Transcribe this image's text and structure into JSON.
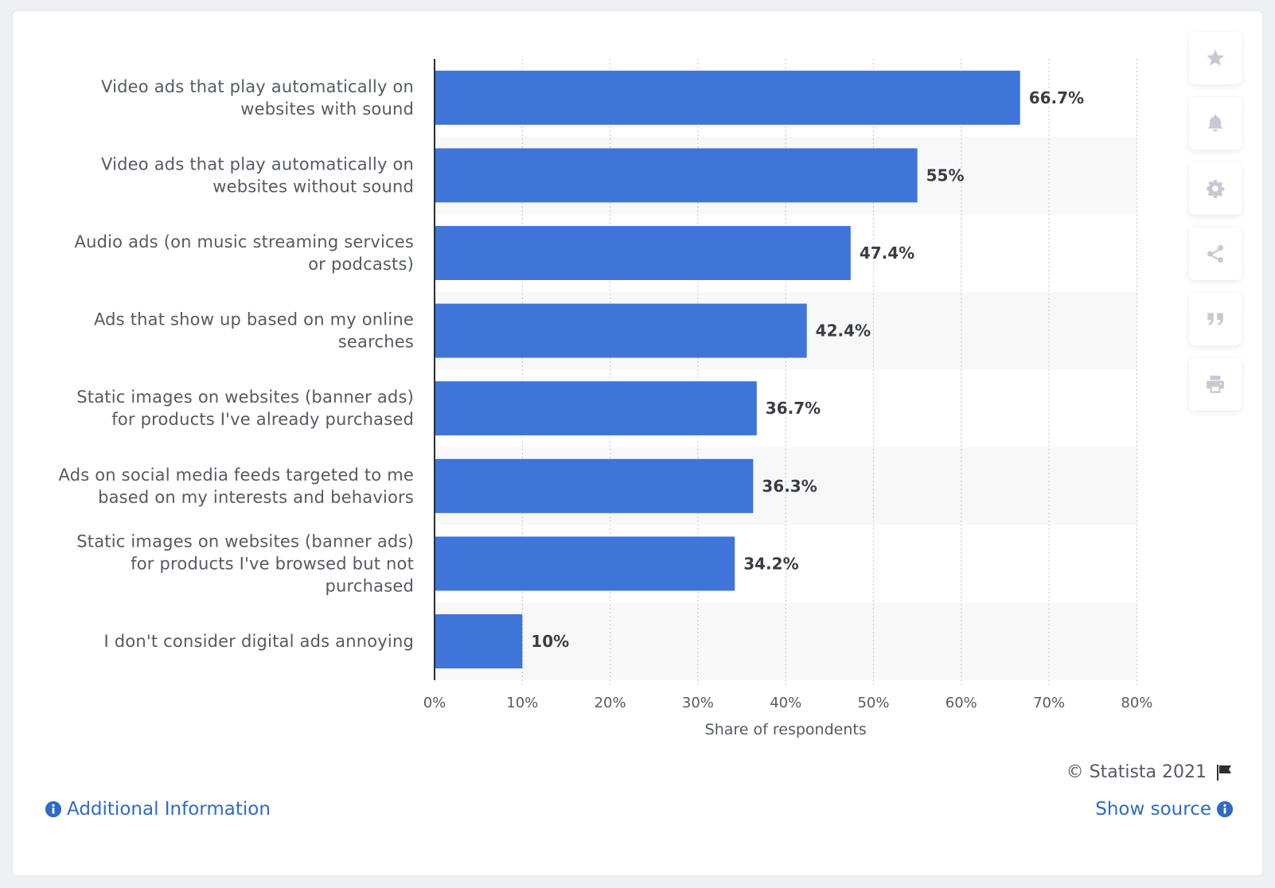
{
  "chart_data": {
    "type": "bar",
    "orientation": "horizontal",
    "categories": [
      [
        "Video ads that play automatically on",
        "websites with sound"
      ],
      [
        "Video ads that play automatically on",
        "websites without sound"
      ],
      [
        "Audio ads (on music streaming services",
        "or podcasts)"
      ],
      [
        "Ads that show up based on my online",
        "searches"
      ],
      [
        "Static images on websites (banner ads)",
        "for products I've already purchased"
      ],
      [
        "Ads on social media feeds targeted to me",
        "based on my interests and behaviors"
      ],
      [
        "Static images on websites (banner ads)",
        "for products I've browsed but not",
        "purchased"
      ],
      [
        "I don't consider digital ads annoying"
      ]
    ],
    "values": [
      66.7,
      55,
      47.4,
      42.4,
      36.7,
      36.3,
      34.2,
      10
    ],
    "value_labels": [
      "66.7%",
      "55%",
      "47.4%",
      "42.4%",
      "36.7%",
      "36.3%",
      "34.2%",
      "10%"
    ],
    "x_ticks": [
      "0%",
      "10%",
      "20%",
      "30%",
      "40%",
      "50%",
      "60%",
      "70%",
      "80%"
    ],
    "xlim": [
      0,
      80
    ],
    "xlabel": "Share of respondents",
    "ylabel": "",
    "grid": "vertical-dotted",
    "bar_color": "#3f74d8",
    "alt_row_color": "#f8f8f9"
  },
  "footer": {
    "credit": "© Statista 2021",
    "additional_info": "Additional Information",
    "show_source": "Show source"
  },
  "toolbar": {
    "icons": [
      "star-icon",
      "bell-icon",
      "gear-icon",
      "share-icon",
      "quote-icon",
      "print-icon"
    ]
  },
  "colors": {
    "link": "#2f6bc4",
    "icon": "#c6c9d2"
  }
}
